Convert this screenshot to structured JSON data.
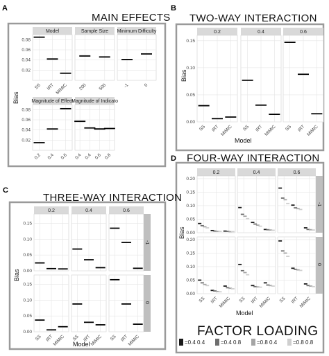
{
  "labels": {
    "a": "A",
    "b": "B",
    "c": "C",
    "d": "D",
    "main_effects": "MAIN EFFECTS",
    "two_way": "TWO-WAY INTERACTION",
    "three_way": "THREE-WAY INTERACTION",
    "four_way": "FOUR-WAY INTERACTION",
    "bias": "Bias",
    "model": "Model",
    "factor_loading": "FACTOR LOADING"
  },
  "colors": {
    "frame": "#9a9a9a",
    "strip": "#d9d9d9",
    "panel_bg": "#ffffff",
    "grid": "#e5e5e5",
    "side_strip": "#bfbfbf"
  },
  "chart_data": [
    {
      "id": "A",
      "type": "line",
      "title": "MAIN EFFECTS",
      "ylabel": "Bias",
      "ylim": [
        0,
        0.09
      ],
      "yticks": [
        "0.02",
        "0.04",
        "0.06",
        "0.08"
      ],
      "facets": [
        {
          "name": "Model",
          "categories": [
            "SS",
            "IRT",
            "MIMIC"
          ],
          "values": [
            0.085,
            0.042,
            0.014
          ]
        },
        {
          "name": "Sample Size",
          "categories": [
            "200",
            "500"
          ],
          "values": [
            0.048,
            0.046
          ]
        },
        {
          "name": "Minimum Difficulty",
          "categories": [
            "-1",
            "0"
          ],
          "values": [
            0.041,
            0.052
          ]
        },
        {
          "name": "Magnitude of Effect",
          "categories": [
            "0.2",
            "0.4",
            "0.6"
          ],
          "values": [
            0.015,
            0.042,
            0.082
          ]
        },
        {
          "name": "Magnitude of Indicato",
          "categories": [
            "0.4",
            "0.4",
            "0.6",
            "0.8"
          ],
          "values": [
            0.057,
            0.044,
            0.042,
            0.043
          ]
        }
      ]
    },
    {
      "id": "B",
      "type": "line",
      "title": "TWO-WAY INTERACTION",
      "xlabel": "Model",
      "ylabel": "Bias",
      "ylim": [
        0,
        0.16
      ],
      "yticks": [
        "0.00",
        "0.05",
        "0.10",
        "0.15"
      ],
      "categories": [
        "SS",
        "IRT",
        "MIMIC"
      ],
      "series": [
        {
          "name": "0.2",
          "values": [
            0.03,
            0.006,
            0.009
          ]
        },
        {
          "name": "0.4",
          "values": [
            0.077,
            0.031,
            0.014
          ]
        },
        {
          "name": "0.6",
          "values": [
            0.147,
            0.088,
            0.015
          ]
        }
      ]
    },
    {
      "id": "C",
      "type": "line",
      "title": "THREE-WAY INTERACTION",
      "xlabel": "Model",
      "ylabel": "Bias",
      "ylim": [
        0,
        0.18
      ],
      "yticks": [
        "0.00",
        "0.05",
        "0.10",
        "0.15"
      ],
      "categories": [
        "SS",
        "IRT",
        "MIMIC"
      ],
      "col_facets": [
        "0.2",
        "0.4",
        "0.6"
      ],
      "row_facets": [
        "-1",
        "0"
      ],
      "cells": [
        [
          [
            0.025,
            0.007,
            0.006
          ],
          [
            0.069,
            0.035,
            0.01
          ],
          [
            0.135,
            0.09,
            0.008
          ]
        ],
        [
          [
            0.037,
            0.006,
            0.016
          ],
          [
            0.088,
            0.03,
            0.022
          ],
          [
            0.165,
            0.088,
            0.024
          ]
        ]
      ]
    },
    {
      "id": "D",
      "type": "line",
      "title": "FOUR-WAY INTERACTION",
      "xlabel": "Model",
      "ylabel": "Bias",
      "ylim": [
        0,
        0.21
      ],
      "yticks": [
        "0.00",
        "0.05",
        "0.10",
        "0.15",
        "0.20"
      ],
      "categories": [
        "SS",
        "IRT",
        "MIMIC"
      ],
      "col_facets": [
        "0.2",
        "0.4",
        "0.6"
      ],
      "row_facets": [
        "-1",
        "0"
      ],
      "legend_title": "FACTOR LOADING",
      "legend_labels": [
        "=0.4 0.4",
        "=0.4 0.8",
        "=0.8 0.4",
        "=0.8 0.8"
      ],
      "legend_colors": [
        "#1a1a1a",
        "#6e6e6e",
        "#a5a5a5",
        "#cfcfcf"
      ],
      "cells": [
        [
          [
            [
              0.034,
              0.008,
              0.006
            ],
            [
              0.026,
              0.006,
              0.005
            ],
            [
              0.022,
              0.005,
              0.004
            ],
            [
              0.018,
              0.005,
              0.004
            ]
          ],
          [
            [
              0.093,
              0.038,
              0.012
            ],
            [
              0.068,
              0.032,
              0.011
            ],
            [
              0.061,
              0.028,
              0.01
            ],
            [
              0.052,
              0.024,
              0.009
            ]
          ],
          [
            [
              0.165,
              0.102,
              0.018
            ],
            [
              0.128,
              0.092,
              0.012
            ],
            [
              0.122,
              0.089,
              0.011
            ],
            [
              0.108,
              0.086,
              0.01
            ]
          ]
        ],
        [
          [
            [
              0.05,
              0.012,
              0.028
            ],
            [
              0.04,
              0.01,
              0.022
            ],
            [
              0.034,
              0.008,
              0.02
            ],
            [
              0.03,
              0.007,
              0.018
            ]
          ],
          [
            [
              0.108,
              0.03,
              0.04
            ],
            [
              0.085,
              0.026,
              0.032
            ],
            [
              0.078,
              0.025,
              0.03
            ],
            [
              0.07,
              0.024,
              0.028
            ]
          ],
          [
            [
              0.195,
              0.094,
              0.036
            ],
            [
              0.158,
              0.09,
              0.03
            ],
            [
              0.15,
              0.088,
              0.028
            ],
            [
              0.138,
              0.086,
              0.026
            ]
          ]
        ]
      ]
    }
  ]
}
